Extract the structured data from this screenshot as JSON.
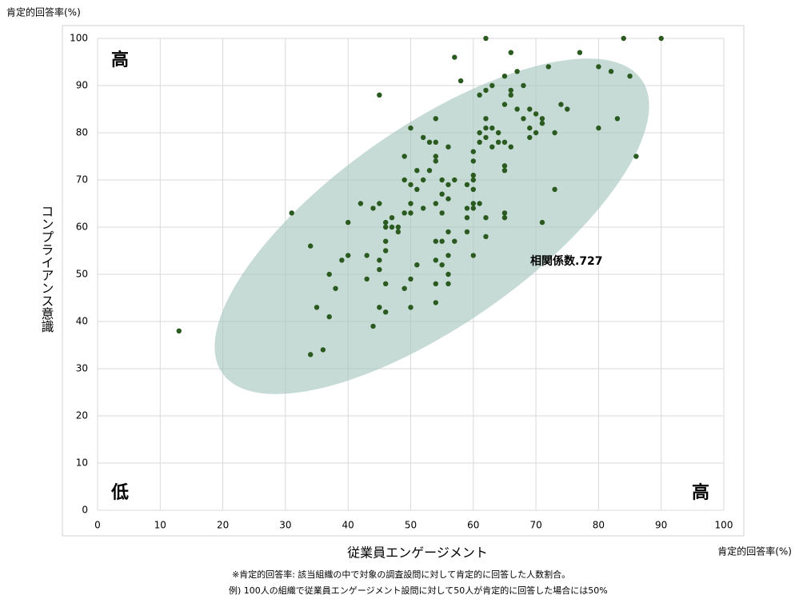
{
  "chart_data": {
    "type": "scatter",
    "y_unit_label": "肯定的回答率(%)",
    "y_label": "コンプライアンス意識",
    "x_label": "従業員エンゲージメント",
    "x_unit_label": "肯定的回答率(%)",
    "corner_labels": [
      "高",
      "低",
      "高"
    ],
    "annotation": "相関係数.727",
    "footnotes": [
      "※肯定的回答率: 該当組織の中で対象の調査設問に対して肯定的に回答した人数割合。",
      "例) 100人の組織で従業員エンゲージメント設問に対して50人が肯定的に回答した場合には50%"
    ],
    "color": "#2a5a1f",
    "grid": true,
    "xlim": [
      0,
      100
    ],
    "ylim": [
      0,
      100
    ],
    "xticks": [
      0,
      10,
      20,
      30,
      40,
      50,
      60,
      70,
      80,
      90,
      100
    ],
    "yticks": [
      0,
      10,
      20,
      30,
      40,
      50,
      60,
      70,
      80,
      90,
      100
    ],
    "x": [
      13,
      31,
      34,
      34,
      35,
      36,
      37,
      37,
      38,
      39,
      40,
      40,
      42,
      43,
      43,
      44,
      44,
      45,
      45,
      45,
      45,
      45,
      46,
      46,
      46,
      46,
      46,
      46,
      47,
      47,
      48,
      48,
      49,
      49,
      49,
      49,
      50,
      50,
      50,
      50,
      50,
      50,
      51,
      51,
      51,
      52,
      52,
      52,
      53,
      53,
      54,
      54,
      54,
      54,
      54,
      54,
      54,
      54,
      54,
      55,
      55,
      55,
      55,
      55,
      56,
      56,
      56,
      56,
      56,
      56,
      56,
      57,
      57,
      57,
      58,
      59,
      59,
      59,
      59,
      60,
      60,
      60,
      60,
      60,
      60,
      60,
      60,
      61,
      61,
      61,
      61,
      62,
      62,
      62,
      62,
      62,
      62,
      62,
      63,
      63,
      63,
      64,
      64,
      65,
      65,
      65,
      65,
      65,
      65,
      65,
      66,
      66,
      66,
      66,
      67,
      67,
      68,
      68,
      69,
      69,
      69,
      70,
      70,
      71,
      71,
      71,
      72,
      73,
      73,
      74,
      75,
      77,
      80,
      80,
      82,
      83,
      84,
      85,
      86,
      90
    ],
    "values": [
      38,
      63,
      56,
      33,
      43,
      34,
      50,
      41,
      47,
      53,
      61,
      54,
      65,
      54,
      49,
      64,
      39,
      88,
      65,
      53,
      51,
      43,
      61,
      60,
      57,
      55,
      48,
      42,
      62,
      60,
      60,
      59,
      75,
      70,
      63,
      47,
      81,
      69,
      65,
      63,
      49,
      43,
      72,
      68,
      52,
      79,
      70,
      64,
      78,
      72,
      83,
      78,
      75,
      74,
      65,
      57,
      53,
      48,
      44,
      70,
      67,
      63,
      57,
      52,
      77,
      69,
      66,
      59,
      54,
      50,
      48,
      96,
      70,
      57,
      91,
      69,
      64,
      62,
      59,
      76,
      74,
      71,
      70,
      68,
      65,
      64,
      54,
      88,
      80,
      78,
      65,
      100,
      89,
      83,
      81,
      79,
      62,
      58,
      90,
      81,
      77,
      80,
      78,
      92,
      86,
      78,
      73,
      72,
      63,
      62,
      97,
      89,
      88,
      77,
      93,
      85,
      90,
      83,
      85,
      81,
      79,
      84,
      80,
      83,
      82,
      61,
      94,
      80,
      68,
      86,
      85,
      97,
      94,
      81,
      93,
      83,
      100,
      92,
      75,
      100
    ]
  }
}
